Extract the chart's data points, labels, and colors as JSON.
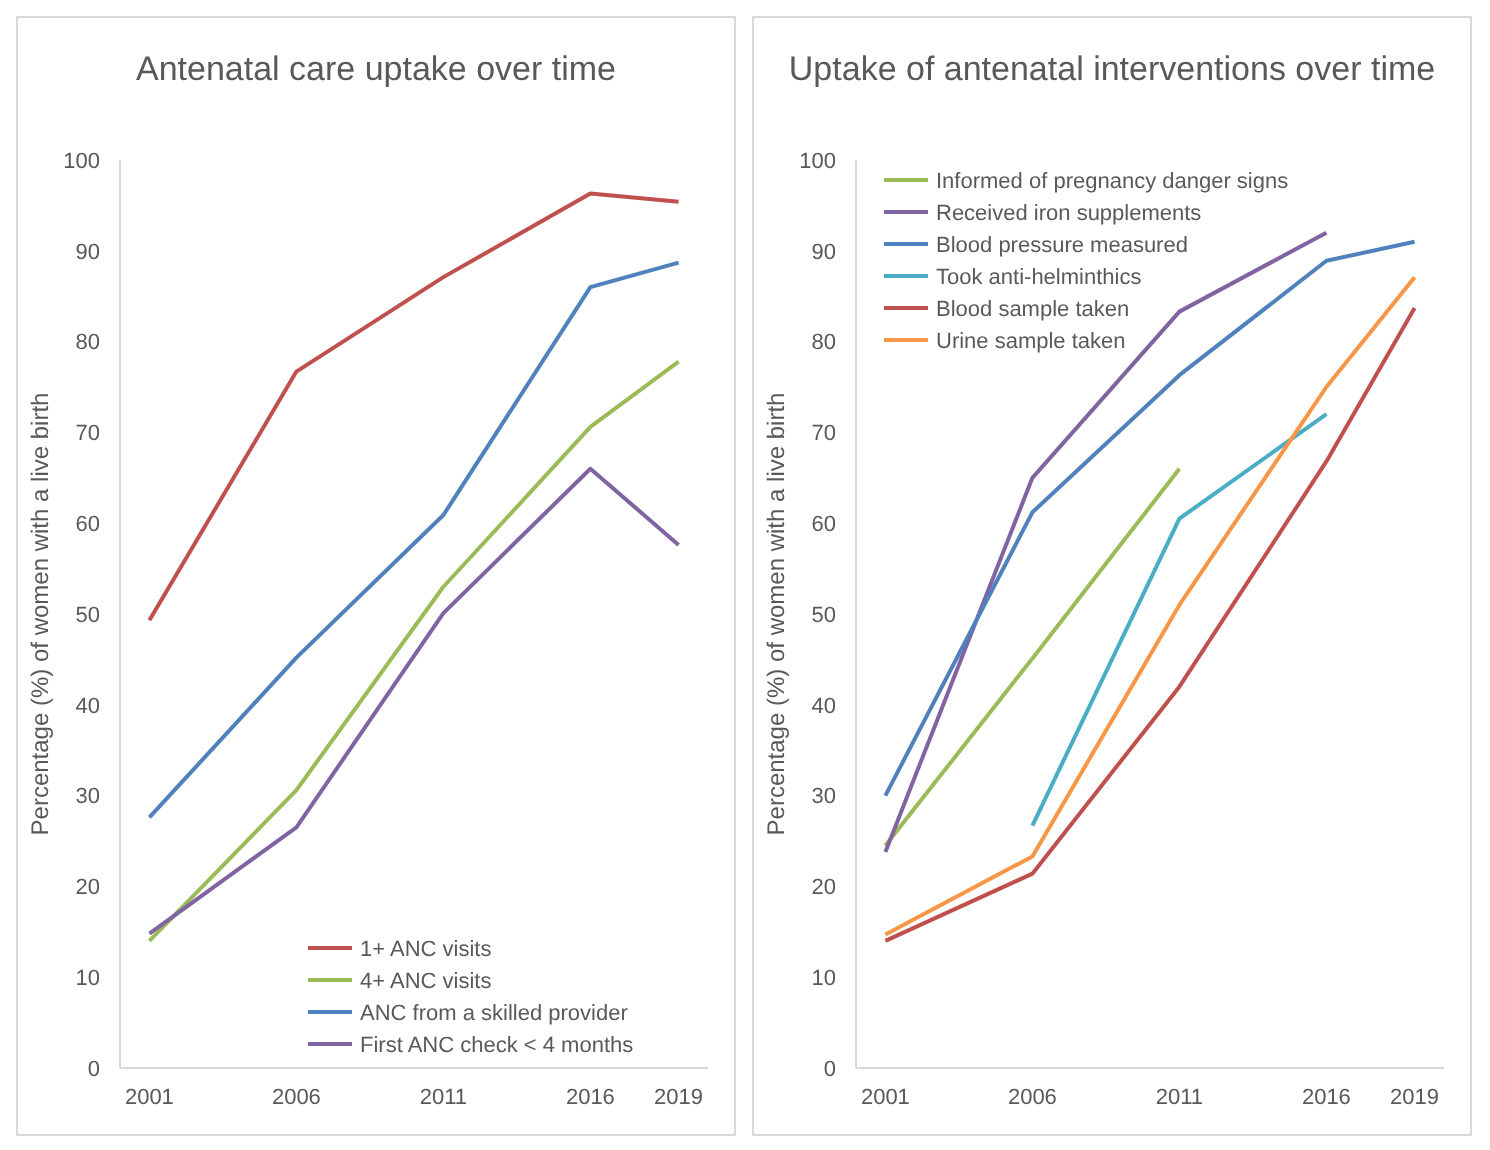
{
  "chart_data": [
    {
      "type": "line",
      "title": "Antenatal care uptake over time",
      "ylabel": "Percentage (%) of women with a live birth",
      "x": [
        2001,
        2006,
        2011,
        2016,
        2019
      ],
      "xlim": [
        2000,
        2020
      ],
      "xticks": [
        2001,
        2006,
        2011,
        2016,
        2019
      ],
      "ylim": [
        0,
        100
      ],
      "yticks": [
        0,
        10,
        20,
        30,
        40,
        50,
        60,
        70,
        80,
        90,
        100
      ],
      "grid": false,
      "legend": "bottom right",
      "marker": "none",
      "line_style": "solid",
      "series": [
        {
          "name": "1+ ANC visits",
          "color": "#c0504d",
          "values": [
            49.3,
            76.7,
            87.1,
            96.3,
            95.4
          ]
        },
        {
          "name": "4+ ANC visits",
          "color": "#9bbb59",
          "values": [
            14,
            30.6,
            53,
            70.6,
            77.8
          ]
        },
        {
          "name": "ANC from a skilled provider",
          "color": "#4f81bd",
          "values": [
            27.6,
            45.2,
            60.9,
            86,
            88.7
          ]
        },
        {
          "name": "First ANC check < 4 months",
          "color": "#8064a2",
          "values": [
            14.8,
            26.5,
            50.1,
            66,
            57.6
          ]
        }
      ]
    },
    {
      "type": "line",
      "title": "Uptake of antenatal interventions over time",
      "ylabel": "Percentage (%) of women with a live birth",
      "x": [
        2001,
        2006,
        2011,
        2016,
        2019
      ],
      "xlim": [
        2000,
        2020
      ],
      "xticks": [
        2001,
        2006,
        2011,
        2016,
        2019
      ],
      "ylim": [
        0,
        100
      ],
      "yticks": [
        0,
        10,
        20,
        30,
        40,
        50,
        60,
        70,
        80,
        90,
        100
      ],
      "grid": false,
      "legend": "top left",
      "marker": "none",
      "line_style": "solid",
      "series": [
        {
          "name": "Informed of pregnancy danger signs",
          "color": "#9bbb59",
          "values": [
            24.5,
            45.1,
            66,
            null,
            null
          ]
        },
        {
          "name": "Received iron supplements",
          "color": "#8064a2",
          "values": [
            23.8,
            65,
            83.3,
            92,
            null
          ]
        },
        {
          "name": "Blood pressure measured",
          "color": "#4f81bd",
          "values": [
            30,
            61.2,
            76.3,
            88.9,
            91
          ]
        },
        {
          "name": "Took anti-helminthics",
          "color": "#4bacc6",
          "values": [
            null,
            26.7,
            60.5,
            72,
            null
          ]
        },
        {
          "name": "Blood sample taken",
          "color": "#c0504d",
          "values": [
            14,
            21.4,
            42,
            66.8,
            83.7
          ]
        },
        {
          "name": "Urine sample taken",
          "color": "#f79646",
          "values": [
            14.7,
            23.3,
            51,
            75,
            87.1
          ]
        }
      ]
    }
  ]
}
